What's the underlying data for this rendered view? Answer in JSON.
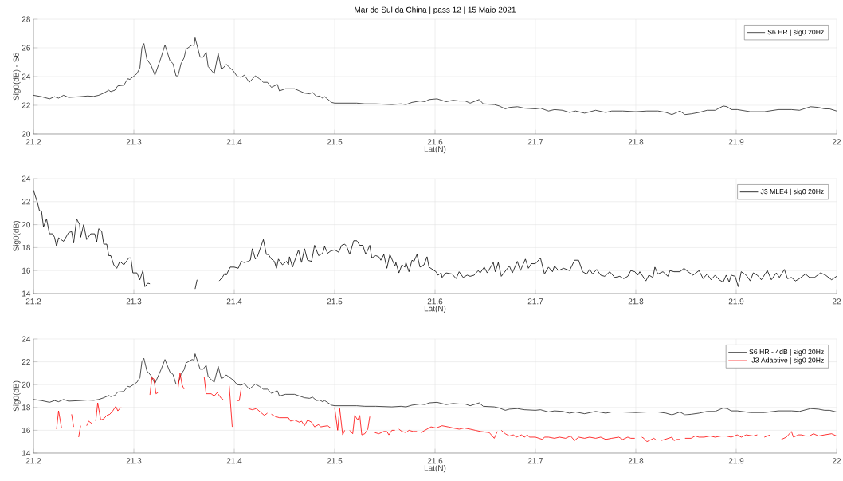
{
  "chart_data": [
    {
      "type": "line",
      "title": "Mar do Sul da China | pass 12 | 15 Maio 2021",
      "xlabel": "Lat(N)",
      "ylabel": "Sig0(dB) - S6",
      "xlim": [
        21.2,
        22
      ],
      "xticks": [
        21.2,
        21.3,
        21.4,
        21.5,
        21.6,
        21.7,
        21.8,
        21.9,
        22
      ],
      "ylim": [
        20,
        28
      ],
      "yticks": [
        20,
        22,
        24,
        26,
        28
      ],
      "grid": true,
      "legend": "top right",
      "series": [
        {
          "name": "S6 HR | sig0 20Hz",
          "color": "#222222",
          "x": [
            21.2,
            21.208,
            21.216,
            21.221,
            21.225,
            21.23,
            21.235,
            21.246,
            21.254,
            21.26,
            21.265,
            21.27,
            21.275,
            21.277,
            21.281,
            21.284,
            21.29,
            21.294,
            21.296,
            21.303,
            21.306,
            21.308,
            21.31,
            21.313,
            21.317,
            21.321,
            21.327,
            21.331,
            21.336,
            21.339,
            21.342,
            21.344,
            21.347,
            21.35,
            21.352,
            21.358,
            21.36,
            21.361,
            21.366,
            21.369,
            21.372,
            21.374,
            21.38,
            21.384,
            21.387,
            21.389,
            21.392,
            21.399,
            21.403,
            21.407,
            21.41,
            21.415,
            21.421,
            21.425,
            21.429,
            21.433,
            21.437,
            21.443,
            21.445,
            21.451,
            21.46,
            21.465,
            21.47,
            21.475,
            21.478,
            21.482,
            21.485,
            21.488,
            21.49,
            21.497,
            21.5,
            21.522,
            21.53,
            21.541,
            21.557,
            21.566,
            21.571,
            21.577,
            21.585,
            21.59,
            21.594,
            21.602,
            21.611,
            21.618,
            21.624,
            21.63,
            21.635,
            21.644,
            21.648,
            21.659,
            21.664,
            21.67,
            21.674,
            21.682,
            21.689,
            21.7,
            21.705,
            21.713,
            21.719,
            21.727,
            21.734,
            21.74,
            21.749,
            21.76,
            21.77,
            21.776,
            21.787,
            21.8,
            21.811,
            21.822,
            21.83,
            21.836,
            21.844,
            21.849,
            21.855,
            21.863,
            21.871,
            21.879,
            21.887,
            21.891,
            21.895,
            21.901,
            21.914,
            21.928,
            21.942,
            21.955,
            21.963,
            21.974,
            21.982,
            21.988,
            21.993,
            22.0
          ],
          "values": [
            22.7,
            22.6,
            22.45,
            22.6,
            22.5,
            22.7,
            22.55,
            22.6,
            22.65,
            22.62,
            22.7,
            22.85,
            23.05,
            22.95,
            23.05,
            23.35,
            23.4,
            23.85,
            23.8,
            24.2,
            24.6,
            26.0,
            26.3,
            25.2,
            24.8,
            24.1,
            25.3,
            26.2,
            25.1,
            24.9,
            24.05,
            24.05,
            24.9,
            25.3,
            25.9,
            26.2,
            26.15,
            26.7,
            25.35,
            25.35,
            25.7,
            24.7,
            24.2,
            25.6,
            24.55,
            24.6,
            24.85,
            24.4,
            24.0,
            23.95,
            24.1,
            23.6,
            24.05,
            23.85,
            23.6,
            23.6,
            23.25,
            23.45,
            23.0,
            23.15,
            23.15,
            23.0,
            22.85,
            22.8,
            22.9,
            22.6,
            22.65,
            22.5,
            22.6,
            22.2,
            22.15,
            22.15,
            22.1,
            22.1,
            22.05,
            22.1,
            22.05,
            22.2,
            22.3,
            22.25,
            22.4,
            22.45,
            22.25,
            22.35,
            22.3,
            22.3,
            22.15,
            22.4,
            22.1,
            22.05,
            21.95,
            21.75,
            21.85,
            21.9,
            21.8,
            21.75,
            21.8,
            21.6,
            21.7,
            21.65,
            21.5,
            21.6,
            21.45,
            21.65,
            21.5,
            21.6,
            21.6,
            21.55,
            21.6,
            21.6,
            21.5,
            21.35,
            21.6,
            21.35,
            21.4,
            21.5,
            21.65,
            21.65,
            21.95,
            21.9,
            21.7,
            21.7,
            21.55,
            21.55,
            21.7,
            21.7,
            21.65,
            21.9,
            21.85,
            21.75,
            21.75,
            21.6
          ]
        }
      ]
    },
    {
      "type": "line",
      "xlabel": "Lat(N)",
      "ylabel": "Sig0(dB)",
      "xlim": [
        21.2,
        22
      ],
      "xticks": [
        21.2,
        21.3,
        21.4,
        21.5,
        21.6,
        21.7,
        21.8,
        21.9,
        22
      ],
      "ylim": [
        14,
        24
      ],
      "yticks": [
        14,
        16,
        18,
        20,
        22,
        24
      ],
      "grid": true,
      "legend": "top right",
      "series": [
        {
          "name": "J3 MLE4 | sig0 20Hz",
          "color": "#000000",
          "x": [
            21.2,
            21.204,
            21.206,
            21.208,
            21.21,
            21.213,
            21.216,
            21.219,
            21.221,
            21.223,
            21.225,
            21.23,
            21.235,
            21.238,
            21.24,
            21.243,
            21.246,
            21.247,
            21.25,
            21.253,
            21.257,
            21.261,
            21.263,
            21.265,
            21.268,
            21.27,
            21.273,
            21.275,
            21.277,
            21.28,
            21.283,
            21.286,
            21.29,
            21.295,
            21.297,
            21.299,
            21.303,
            21.306,
            21.309,
            21.311,
            21.314,
            21.316,
            21.338,
            21.361,
            21.363,
            21.375,
            21.385,
            21.388,
            21.391,
            21.392,
            21.396,
            21.4,
            21.404,
            21.407,
            21.41,
            21.414,
            21.416,
            21.418,
            21.421,
            21.423,
            21.429,
            21.432,
            21.434,
            21.437,
            21.44,
            21.442,
            21.444,
            21.448,
            21.452,
            21.454,
            21.455,
            21.458,
            21.464,
            21.467,
            21.47,
            21.473,
            21.477,
            21.48,
            21.484,
            21.488,
            21.49,
            21.493,
            21.496,
            21.5,
            21.504,
            21.507,
            21.51,
            21.512,
            21.515,
            21.519,
            21.522,
            21.525,
            21.528,
            21.531,
            21.535,
            21.537,
            21.541,
            21.544,
            21.546,
            21.549,
            21.552,
            21.555,
            21.557,
            21.56,
            21.561,
            21.564,
            21.567,
            21.57,
            21.571,
            21.574,
            21.577,
            21.579,
            21.582,
            21.585,
            21.589,
            21.592,
            21.594,
            21.601,
            21.603,
            21.606,
            21.607,
            21.611,
            21.617,
            21.621,
            21.624,
            21.628,
            21.632,
            21.635,
            21.639,
            21.643,
            21.645,
            21.649,
            21.652,
            21.658,
            21.66,
            21.663,
            21.666,
            21.674,
            21.677,
            21.682,
            21.685,
            21.69,
            21.693,
            21.696,
            21.7,
            21.705,
            21.709,
            21.713,
            21.717,
            21.719,
            21.723,
            21.728,
            21.734,
            21.739,
            21.743,
            21.747,
            21.751,
            21.754,
            21.757,
            21.761,
            21.765,
            21.769,
            21.774,
            21.779,
            21.784,
            21.788,
            21.792,
            21.795,
            21.799,
            21.802,
            21.804,
            21.81,
            21.813,
            21.817,
            21.819,
            21.822,
            21.827,
            21.832,
            21.834,
            21.838,
            21.844,
            21.848,
            21.852,
            21.857,
            21.863,
            21.867,
            21.871,
            21.875,
            21.879,
            21.883,
            21.887,
            21.89,
            21.893,
            21.895,
            21.899,
            21.902,
            21.905,
            21.91,
            21.914,
            21.917,
            21.921,
            21.925,
            21.931,
            21.933,
            21.935,
            21.94,
            21.943,
            21.948,
            21.951,
            21.955,
            21.959,
            21.963,
            21.969,
            21.973,
            21.978,
            21.984,
            21.989,
            21.992,
            21.995,
            22.0
          ],
          "values": [
            23.0,
            21.9,
            21.2,
            21.2,
            19.8,
            20.5,
            19.2,
            19.2,
            18.9,
            18.1,
            18.85,
            18.55,
            19.3,
            19.4,
            18.4,
            20.5,
            20.0,
            18.9,
            20.0,
            18.7,
            19.2,
            19.2,
            18.5,
            19.65,
            19.4,
            18.3,
            18.3,
            17.3,
            17.3,
            16.5,
            16.2,
            16.8,
            16.5,
            17.1,
            17.1,
            15.8,
            15.8,
            15.2,
            16.0,
            14.6,
            14.9,
            14.85,
            null,
            14.4,
            15.2,
            null,
            15.1,
            15.4,
            15.8,
            15.6,
            16.3,
            16.3,
            16.2,
            16.8,
            16.7,
            16.8,
            16.9,
            17.9,
            17.0,
            17.2,
            18.7,
            17.4,
            17.4,
            17.0,
            16.8,
            16.2,
            17.0,
            16.5,
            16.8,
            16.5,
            17.2,
            16.3,
            17.8,
            16.7,
            17.9,
            16.9,
            16.8,
            18.2,
            17.3,
            17.5,
            18.1,
            17.5,
            17.7,
            17.8,
            17.6,
            18.2,
            18.3,
            18.1,
            17.4,
            18.6,
            18.6,
            18.2,
            18.2,
            17.4,
            18.2,
            17.1,
            17.3,
            17.2,
            16.9,
            17.4,
            16.2,
            17.4,
            17.0,
            16.4,
            16.7,
            15.8,
            16.5,
            16.3,
            16.7,
            15.9,
            16.9,
            16.8,
            17.4,
            16.3,
            16.5,
            17.2,
            16.3,
            15.9,
            15.6,
            15.8,
            15.4,
            15.8,
            15.7,
            15.3,
            15.9,
            15.4,
            15.6,
            15.5,
            15.6,
            16.0,
            15.8,
            16.3,
            15.8,
            16.7,
            15.9,
            16.7,
            15.5,
            16.4,
            15.8,
            16.8,
            16.0,
            17.0,
            16.2,
            16.6,
            16.6,
            17.1,
            15.7,
            16.3,
            15.9,
            16.4,
            16.0,
            16.2,
            16.0,
            16.9,
            16.9,
            15.9,
            15.7,
            16.1,
            15.7,
            16.1,
            15.6,
            15.5,
            15.9,
            15.4,
            15.5,
            15.3,
            15.5,
            16.0,
            15.9,
            15.6,
            15.9,
            15.1,
            15.6,
            15.4,
            16.3,
            15.7,
            15.9,
            15.5,
            16.0,
            15.9,
            15.9,
            16.2,
            15.9,
            15.6,
            16.0,
            15.3,
            15.7,
            15.2,
            15.6,
            15.2,
            15.0,
            15.6,
            15.0,
            15.6,
            15.5,
            14.6,
            15.9,
            15.6,
            15.1,
            15.8,
            15.6,
            15.2,
            16.0,
            15.6,
            15.2,
            15.8,
            15.4,
            16.1,
            15.3,
            15.4,
            15.1,
            15.3,
            15.7,
            15.4,
            15.4,
            15.8,
            15.6,
            15.4,
            15.2,
            15.5
          ]
        }
      ]
    },
    {
      "type": "line",
      "xlabel": "Lat(N)",
      "ylabel": "Sig0(dB)",
      "xlim": [
        21.2,
        22
      ],
      "xticks": [
        21.2,
        21.3,
        21.4,
        21.5,
        21.6,
        21.7,
        21.8,
        21.9,
        22
      ],
      "ylim": [
        14,
        24
      ],
      "yticks": [
        14,
        16,
        18,
        20,
        22,
        24
      ],
      "grid": true,
      "legend": "top right",
      "series": [
        {
          "name": "S6 HR - 4dB | sig0 20Hz",
          "color": "#222222",
          "x": [
            21.2,
            21.208,
            21.216,
            21.221,
            21.225,
            21.23,
            21.235,
            21.246,
            21.254,
            21.26,
            21.265,
            21.27,
            21.275,
            21.277,
            21.281,
            21.284,
            21.29,
            21.294,
            21.296,
            21.303,
            21.306,
            21.308,
            21.31,
            21.313,
            21.317,
            21.321,
            21.327,
            21.331,
            21.336,
            21.339,
            21.342,
            21.344,
            21.347,
            21.35,
            21.352,
            21.358,
            21.36,
            21.361,
            21.366,
            21.369,
            21.372,
            21.374,
            21.38,
            21.384,
            21.387,
            21.389,
            21.392,
            21.399,
            21.403,
            21.407,
            21.41,
            21.415,
            21.421,
            21.425,
            21.429,
            21.433,
            21.437,
            21.443,
            21.445,
            21.451,
            21.46,
            21.465,
            21.47,
            21.475,
            21.478,
            21.482,
            21.485,
            21.488,
            21.49,
            21.497,
            21.5,
            21.522,
            21.53,
            21.541,
            21.557,
            21.566,
            21.571,
            21.577,
            21.585,
            21.59,
            21.594,
            21.602,
            21.611,
            21.618,
            21.624,
            21.63,
            21.635,
            21.644,
            21.648,
            21.659,
            21.664,
            21.67,
            21.674,
            21.682,
            21.689,
            21.7,
            21.705,
            21.713,
            21.719,
            21.727,
            21.734,
            21.74,
            21.749,
            21.76,
            21.77,
            21.776,
            21.787,
            21.8,
            21.811,
            21.822,
            21.83,
            21.836,
            21.844,
            21.849,
            21.855,
            21.863,
            21.871,
            21.879,
            21.887,
            21.891,
            21.895,
            21.901,
            21.914,
            21.928,
            21.942,
            21.955,
            21.963,
            21.974,
            21.982,
            21.988,
            21.993,
            22.0
          ],
          "values": [
            18.7,
            18.6,
            18.45,
            18.6,
            18.5,
            18.7,
            18.55,
            18.6,
            18.65,
            18.62,
            18.7,
            18.85,
            19.05,
            18.95,
            19.05,
            19.35,
            19.4,
            19.85,
            19.8,
            20.2,
            20.6,
            22.0,
            22.3,
            21.2,
            20.8,
            20.1,
            21.3,
            22.2,
            21.1,
            20.9,
            20.05,
            20.05,
            20.9,
            21.3,
            21.9,
            22.2,
            22.15,
            22.7,
            21.35,
            21.35,
            21.7,
            20.7,
            20.2,
            21.6,
            20.55,
            20.6,
            20.85,
            20.4,
            20.0,
            19.95,
            20.1,
            19.6,
            20.05,
            19.85,
            19.6,
            19.6,
            19.25,
            19.45,
            19.0,
            19.15,
            19.15,
            19.0,
            18.85,
            18.8,
            18.9,
            18.6,
            18.65,
            18.5,
            18.6,
            18.2,
            18.15,
            18.15,
            18.1,
            18.1,
            18.05,
            18.1,
            18.05,
            18.2,
            18.3,
            18.25,
            18.4,
            18.45,
            18.25,
            18.35,
            18.3,
            18.3,
            18.15,
            18.4,
            18.1,
            18.05,
            17.95,
            17.75,
            17.85,
            17.9,
            17.8,
            17.75,
            17.8,
            17.6,
            17.7,
            17.65,
            17.5,
            17.6,
            17.45,
            17.65,
            17.5,
            17.6,
            17.6,
            17.55,
            17.6,
            17.6,
            17.5,
            17.35,
            17.6,
            17.35,
            17.4,
            17.5,
            17.65,
            17.65,
            17.95,
            17.9,
            17.7,
            17.7,
            17.55,
            17.55,
            17.7,
            17.7,
            17.65,
            17.9,
            17.85,
            17.75,
            17.75,
            17.6
          ]
        },
        {
          "name": "J3 Adaptive | sig0 20Hz",
          "color": "#ff0000",
          "x": [
            21.223,
            21.225,
            21.228,
            21.232,
            21.238,
            21.24,
            21.242,
            21.245,
            21.247,
            21.249,
            21.253,
            21.255,
            21.258,
            21.26,
            21.262,
            21.264,
            21.267,
            21.27,
            21.273,
            21.276,
            21.279,
            21.282,
            21.284,
            21.287,
            21.3,
            21.316,
            21.318,
            21.32,
            21.322,
            21.324,
            21.33,
            21.344,
            21.346,
            21.348,
            21.35,
            21.36,
            21.37,
            21.372,
            21.377,
            21.38,
            21.383,
            21.387,
            21.389,
            21.392,
            21.395,
            21.398,
            21.4,
            21.403,
            21.405,
            21.407,
            21.409,
            21.411,
            21.414,
            21.418,
            21.422,
            21.426,
            21.43,
            21.433,
            21.435,
            21.437,
            21.441,
            21.445,
            21.449,
            21.454,
            21.456,
            21.46,
            21.465,
            21.467,
            21.47,
            21.473,
            21.477,
            21.48,
            21.484,
            21.486,
            21.493,
            21.496,
            21.498,
            21.5,
            21.503,
            21.505,
            21.508,
            21.51,
            21.512,
            21.515,
            21.518,
            21.52,
            21.523,
            21.525,
            21.527,
            21.53,
            21.533,
            21.535,
            21.538,
            21.54,
            21.544,
            21.549,
            21.552,
            21.554,
            21.557,
            21.56,
            21.562,
            21.564,
            21.567,
            21.571,
            21.574,
            21.578,
            21.582,
            21.584,
            21.586,
            21.59,
            21.594,
            21.596,
            21.601,
            21.607,
            21.613,
            21.618,
            21.624,
            21.629,
            21.635,
            21.64,
            21.645,
            21.654,
            21.659,
            21.662,
            21.664,
            21.666,
            21.67,
            21.674,
            21.678,
            21.681,
            21.686,
            21.689,
            21.692,
            21.694,
            21.7,
            21.707,
            21.709,
            21.713,
            21.719,
            21.724,
            21.73,
            21.735,
            21.739,
            21.743,
            21.749,
            21.754,
            21.76,
            21.765,
            21.77,
            21.776,
            21.783,
            21.787,
            21.792,
            21.795,
            21.799,
            21.803,
            21.806,
            21.808,
            21.811,
            21.818,
            21.821,
            21.823,
            21.825,
            21.829,
            21.836,
            21.838,
            21.841,
            21.844,
            21.846,
            21.849,
            21.855,
            21.859,
            21.863,
            21.868,
            21.874,
            21.879,
            21.885,
            21.89,
            21.895,
            21.901,
            21.905,
            21.91,
            21.917,
            21.921,
            21.925,
            21.928,
            21.934,
            21.938,
            21.945,
            21.95,
            21.955,
            21.957,
            21.962,
            21.965,
            21.969,
            21.973,
            21.977,
            21.982,
            21.988,
            21.995,
            22.0
          ],
          "values": [
            16.1,
            17.7,
            16.2,
            null,
            17.4,
            16.3,
            null,
            15.4,
            16.4,
            null,
            16.4,
            16.8,
            16.6,
            null,
            16.8,
            18.4,
            16.9,
            17.0,
            17.3,
            17.4,
            17.7,
            18.1,
            17.7,
            18.0,
            null,
            19.1,
            20.6,
            20.5,
            19.2,
            19.3,
            null,
            19.7,
            21.0,
            20.0,
            19.6,
            null,
            20.7,
            19.2,
            19.2,
            19.0,
            19.3,
            18.8,
            18.7,
            null,
            19.9,
            16.3,
            null,
            18.6,
            18.6,
            19.7,
            19.7,
            null,
            17.9,
            17.8,
            17.9,
            17.6,
            17.3,
            17.5,
            null,
            17.4,
            17.2,
            17.1,
            17.1,
            17.1,
            16.8,
            16.9,
            16.7,
            16.8,
            16.4,
            16.9,
            16.7,
            16.3,
            16.5,
            16.3,
            16.4,
            16.2,
            null,
            18.0,
            16.0,
            17.9,
            15.6,
            16.0,
            null,
            16.0,
            15.7,
            17.3,
            16.9,
            17.3,
            15.6,
            15.7,
            16.1,
            17.2,
            null,
            15.8,
            15.7,
            15.9,
            15.9,
            15.6,
            16.0,
            16.0,
            null,
            16.1,
            15.9,
            15.8,
            16.0,
            15.9,
            15.9,
            null,
            15.8,
            16.0,
            16.2,
            16.3,
            16.2,
            16.4,
            16.3,
            16.2,
            16.1,
            16.2,
            16.1,
            16.0,
            15.9,
            15.8,
            15.3,
            15.9,
            null,
            16.0,
            15.7,
            15.5,
            15.6,
            15.4,
            15.6,
            15.4,
            15.6,
            15.4,
            15.4,
            15.2,
            15.4,
            15.4,
            15.3,
            15.4,
            15.3,
            15.5,
            15.1,
            15.4,
            15.3,
            15.4,
            15.3,
            15.4,
            15.2,
            15.3,
            15.4,
            15.2,
            15.4,
            15.3,
            15.3,
            null,
            15.4,
            15.3,
            15.0,
            15.3,
            15.1,
            null,
            15.1,
            15.2,
            15.4,
            15.1,
            15.2,
            15.2,
            null,
            15.3,
            15.3,
            15.5,
            15.4,
            15.4,
            15.5,
            15.4,
            15.5,
            15.5,
            15.4,
            15.6,
            15.4,
            15.6,
            15.5,
            15.6,
            null,
            15.4,
            15.6,
            null,
            15.2,
            15.4,
            15.9,
            15.4,
            15.6,
            15.6,
            15.5,
            15.5,
            15.7,
            15.5,
            15.6,
            15.7,
            15.5
          ]
        }
      ]
    }
  ]
}
